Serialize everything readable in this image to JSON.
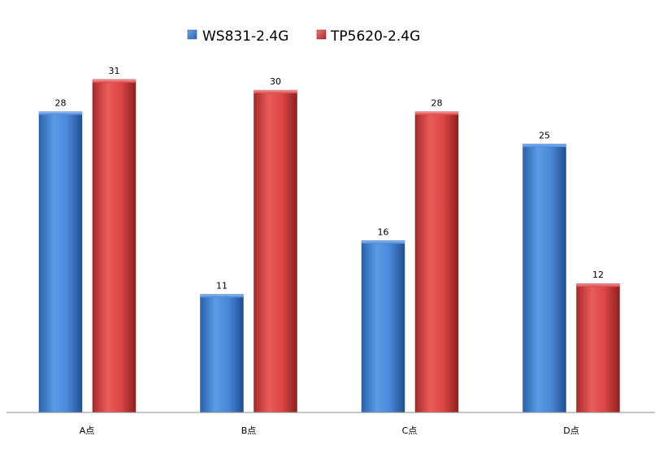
{
  "chart_data": {
    "type": "bar",
    "categories": [
      "A点",
      "B点",
      "C点",
      "D点"
    ],
    "series": [
      {
        "name": "WS831-2.4G",
        "values": [
          28,
          11,
          16,
          25
        ],
        "color": "#3c7ed2"
      },
      {
        "name": "TP5620-2.4G",
        "values": [
          31,
          30,
          28,
          12
        ],
        "color": "#d24040"
      }
    ],
    "ylim": [
      0,
      31
    ],
    "grid": false,
    "legend_position": "top-center",
    "data_labels": true
  }
}
